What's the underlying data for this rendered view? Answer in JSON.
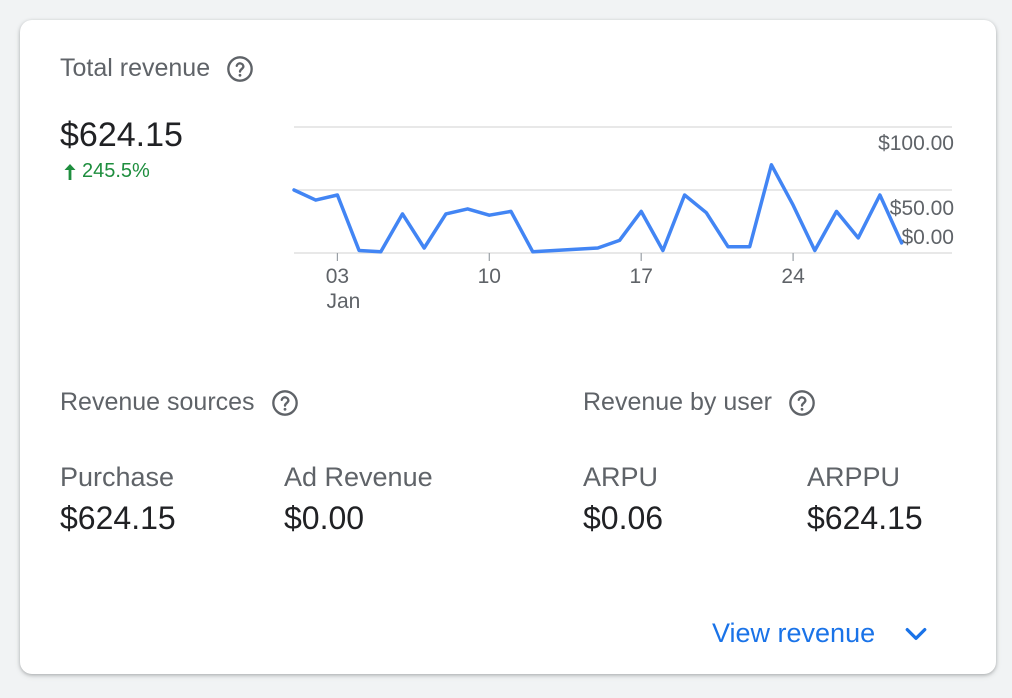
{
  "total_revenue": {
    "title": "Total revenue",
    "value": "$624.15",
    "change": "245.5%",
    "help_icon": "help-circle-icon",
    "change_icon": "arrow-up-icon"
  },
  "chart_data": {
    "type": "line",
    "title": "",
    "xlabel": "",
    "ylabel": "",
    "x_tick_labels": [
      "03",
      "10",
      "17",
      "24"
    ],
    "x_sublabel": "Jan",
    "y_tick_labels": [
      "$100.00",
      "$50.00",
      "$0.00"
    ],
    "ylim": [
      0,
      100
    ],
    "grid": true,
    "series": [
      {
        "values": [
          50,
          42,
          46,
          2,
          1,
          31,
          4,
          31,
          35,
          30,
          33,
          1,
          2,
          3,
          4,
          10,
          33,
          2,
          46,
          32,
          5,
          5,
          70,
          38,
          2,
          33,
          12,
          46,
          8
        ]
      }
    ],
    "line_color": "#4285f4"
  },
  "revenue_sources": {
    "title": "Revenue sources",
    "help_icon": "help-circle-icon",
    "items": [
      {
        "label": "Purchase",
        "value": "$624.15"
      },
      {
        "label": "Ad Revenue",
        "value": "$0.00"
      }
    ]
  },
  "revenue_by_user": {
    "title": "Revenue by user",
    "help_icon": "help-circle-icon",
    "items": [
      {
        "label": "ARPU",
        "value": "$0.06"
      },
      {
        "label": "ARPPU",
        "value": "$624.15"
      }
    ]
  },
  "footer": {
    "link_label": "View revenue",
    "chevron_icon": "chevron-down-icon",
    "link_color": "#1a73e8"
  }
}
